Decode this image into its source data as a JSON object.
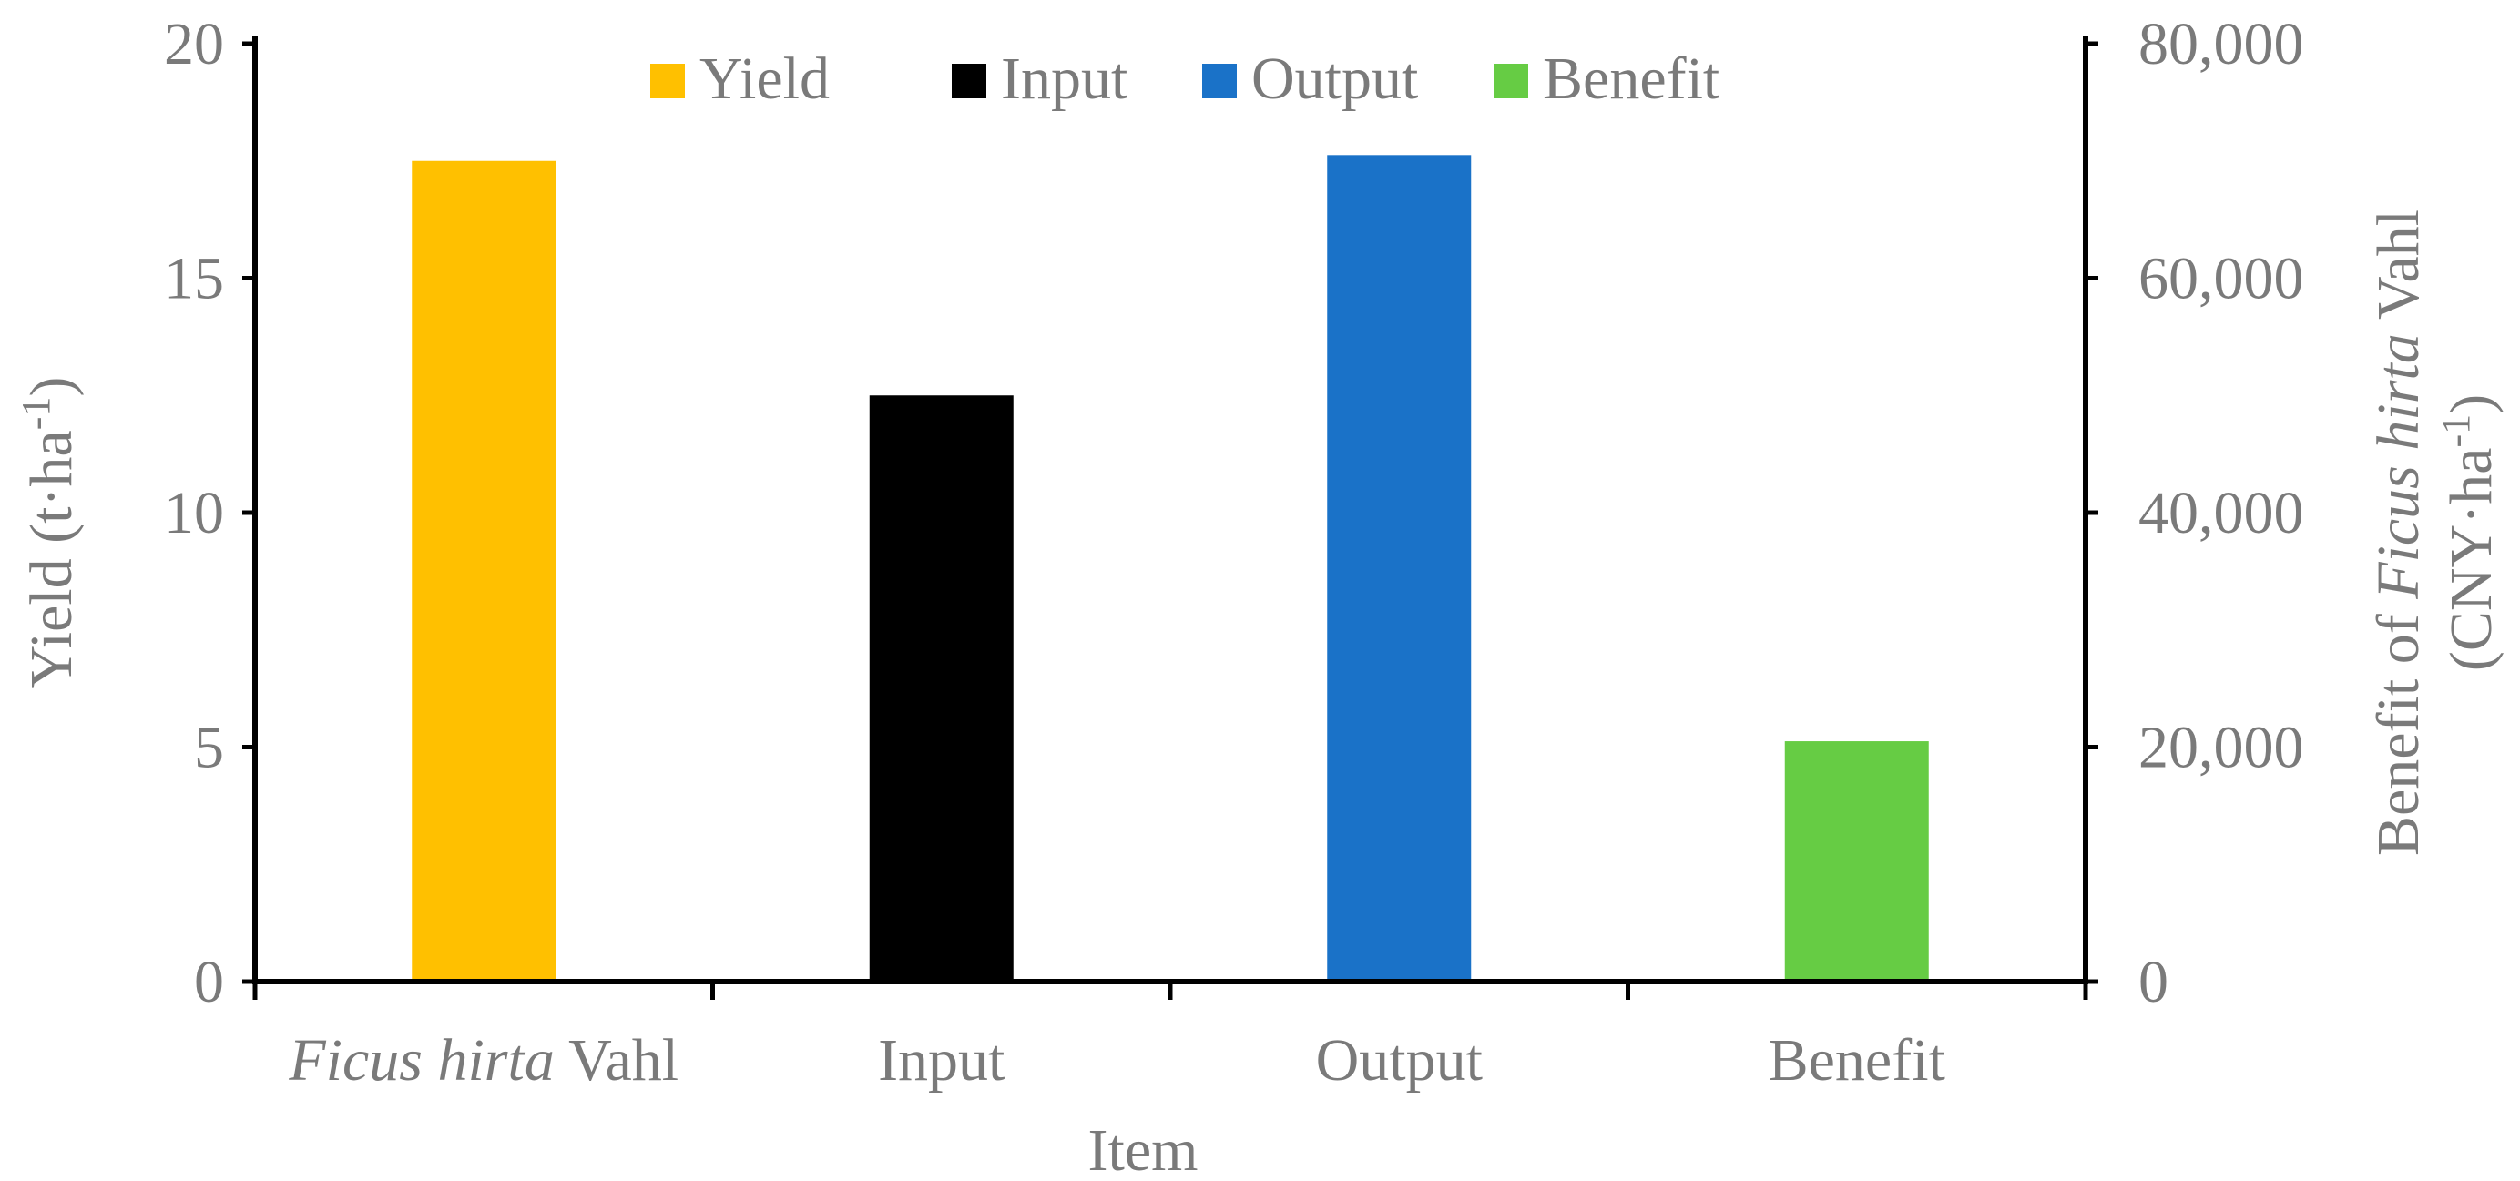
{
  "chart_data": {
    "type": "bar",
    "categories": [
      {
        "italic": "Ficus hirta",
        "normal": " Vahl"
      },
      {
        "italic": "",
        "normal": "Input"
      },
      {
        "italic": "",
        "normal": "Output"
      },
      {
        "italic": "",
        "normal": "Benefit"
      }
    ],
    "series": [
      {
        "name": "Yield",
        "axis": "left",
        "category_index": 0,
        "value": 17.5,
        "color": "#FFC000"
      },
      {
        "name": "Input",
        "axis": "right",
        "category_index": 1,
        "value": 50000,
        "color": "#000000"
      },
      {
        "name": "Output",
        "axis": "right",
        "category_index": 2,
        "value": 70500,
        "color": "#1A72C8"
      },
      {
        "name": "Benefit",
        "axis": "right",
        "category_index": 3,
        "value": 20500,
        "color": "#66CC44"
      }
    ],
    "left_axis": {
      "ylim": [
        0,
        20
      ],
      "ticks": [
        0,
        5,
        10,
        15,
        20
      ],
      "tick_labels": [
        "0",
        "5",
        "10",
        "15",
        "20"
      ],
      "title": {
        "text": "Yield (t·ha",
        "sup": "-1",
        "close": ")"
      }
    },
    "right_axis": {
      "ylim": [
        0,
        80000
      ],
      "ticks": [
        0,
        20000,
        40000,
        60000,
        80000
      ],
      "tick_labels": [
        "0",
        "20,000",
        "40,000",
        "60,000",
        "80,000"
      ],
      "title_line1": {
        "prefix": "Benefit of ",
        "italic": "Ficus hirta",
        "suffix": " Vahl"
      },
      "title_line2": {
        "text": "(CNY·ha",
        "sup": "-1",
        "close": ")"
      }
    },
    "xlabel": "Item",
    "legend": {
      "placement": "top",
      "entries": [
        "Yield",
        "Input",
        "Output",
        "Benefit"
      ]
    },
    "grid": false
  }
}
